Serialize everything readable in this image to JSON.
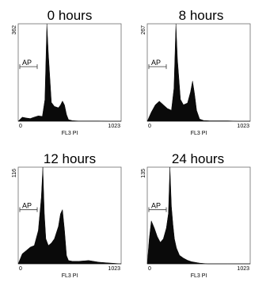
{
  "chart_data": [
    {
      "type": "area",
      "title": "0 hours",
      "xlabel": "FL3 PI",
      "ylabel": "",
      "xlim": [
        0,
        1023
      ],
      "ylim": [
        0,
        362
      ],
      "xticks": [
        "0",
        "1023"
      ],
      "yticks": [
        "362"
      ],
      "annotation": "AP",
      "series": [
        {
          "x": [
            0,
            40,
            80,
            120,
            150,
            200,
            240,
            265,
            285,
            300,
            330,
            360,
            400,
            420,
            440,
            460,
            480,
            500,
            540,
            600,
            700,
            800,
            900,
            1023
          ],
          "y": [
            0,
            15,
            12,
            10,
            14,
            20,
            18,
            80,
            365,
            250,
            70,
            55,
            50,
            60,
            75,
            60,
            25,
            6,
            2,
            1,
            1,
            1,
            0,
            0
          ]
        }
      ]
    },
    {
      "type": "area",
      "title": "8 hours",
      "xlabel": "FL3 PI",
      "ylabel": "",
      "xlim": [
        0,
        1023
      ],
      "ylim": [
        0,
        267
      ],
      "xticks": [
        "0",
        "1023"
      ],
      "yticks": [
        "267"
      ],
      "annotation": "AP",
      "series": [
        {
          "x": [
            0,
            40,
            80,
            120,
            160,
            200,
            240,
            265,
            285,
            300,
            330,
            360,
            400,
            430,
            450,
            470,
            490,
            520,
            560,
            620,
            700,
            800,
            900,
            1023
          ],
          "y": [
            0,
            25,
            45,
            55,
            45,
            35,
            30,
            90,
            270,
            170,
            60,
            45,
            50,
            80,
            110,
            75,
            30,
            6,
            2,
            1,
            1,
            1,
            0,
            0
          ]
        }
      ]
    },
    {
      "type": "area",
      "title": "12 hours",
      "xlabel": "FL3 PI",
      "ylabel": "",
      "xlim": [
        0,
        1023
      ],
      "ylim": [
        0,
        116
      ],
      "xticks": [
        "0",
        "1023"
      ],
      "yticks": [
        "116"
      ],
      "annotation": "AP",
      "series": [
        {
          "x": [
            0,
            40,
            80,
            120,
            160,
            200,
            230,
            245,
            260,
            275,
            300,
            330,
            360,
            400,
            420,
            440,
            460,
            480,
            500,
            540,
            600,
            700,
            800,
            900,
            1023
          ],
          "y": [
            0,
            12,
            16,
            20,
            22,
            40,
            80,
            118,
            60,
            30,
            22,
            25,
            30,
            45,
            60,
            65,
            40,
            10,
            4,
            3,
            3,
            4,
            2,
            1,
            0
          ]
        }
      ]
    },
    {
      "type": "area",
      "title": "24 hours",
      "xlabel": "FL3 PI",
      "ylabel": "",
      "xlim": [
        0,
        1023
      ],
      "ylim": [
        0,
        135
      ],
      "xticks": [
        "0",
        "1023"
      ],
      "yticks": [
        "135"
      ],
      "annotation": "AP",
      "series": [
        {
          "x": [
            0,
            20,
            40,
            70,
            100,
            130,
            160,
            190,
            210,
            225,
            240,
            255,
            270,
            290,
            320,
            360,
            400,
            440,
            480,
            520,
            600,
            700,
            800,
            1023
          ],
          "y": [
            0,
            35,
            60,
            50,
            38,
            30,
            35,
            50,
            70,
            137,
            80,
            55,
            35,
            22,
            12,
            8,
            5,
            3,
            2,
            1,
            0,
            0,
            0,
            0
          ]
        }
      ]
    }
  ]
}
